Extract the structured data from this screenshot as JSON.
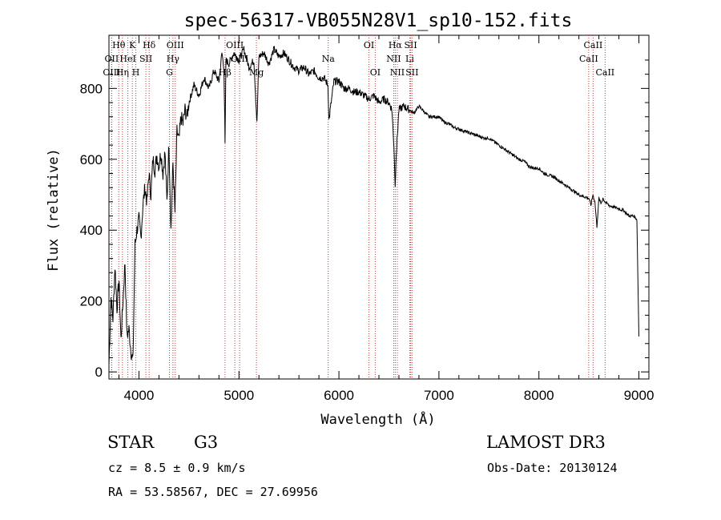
{
  "chart_data": {
    "type": "line",
    "title": "spec-56317-VB055N28V1_sp10-152.fits",
    "xlabel": "Wavelength (Å)",
    "ylabel": "Flux (relative)",
    "xlim": [
      3700,
      9100
    ],
    "ylim": [
      -20,
      950
    ],
    "xticks": [
      4000,
      5000,
      6000,
      7000,
      8000,
      9000
    ],
    "yticks": [
      0,
      200,
      400,
      600,
      800
    ],
    "spectrum": {
      "x": [
        3700,
        3720,
        3740,
        3760,
        3780,
        3800,
        3820,
        3840,
        3860,
        3880,
        3900,
        3920,
        3940,
        3960,
        3980,
        4000,
        4020,
        4040,
        4060,
        4080,
        4100,
        4120,
        4140,
        4160,
        4180,
        4200,
        4220,
        4240,
        4260,
        4280,
        4300,
        4320,
        4340,
        4360,
        4380,
        4400,
        4420,
        4440,
        4460,
        4480,
        4500,
        4550,
        4600,
        4650,
        4700,
        4750,
        4800,
        4830,
        4850,
        4861,
        4870,
        4900,
        4950,
        5000,
        5050,
        5100,
        5150,
        5180,
        5200,
        5250,
        5300,
        5350,
        5400,
        5450,
        5500,
        5550,
        5600,
        5650,
        5700,
        5750,
        5800,
        5850,
        5890,
        5900,
        5950,
        6000,
        6050,
        6100,
        6150,
        6200,
        6250,
        6300,
        6350,
        6400,
        6450,
        6500,
        6530,
        6550,
        6563,
        6570,
        6600,
        6650,
        6700,
        6750,
        6800,
        6850,
        6900,
        6950,
        7000,
        7050,
        7100,
        7150,
        7200,
        7250,
        7300,
        7350,
        7400,
        7450,
        7500,
        7550,
        7600,
        7650,
        7700,
        7750,
        7800,
        7850,
        7900,
        7950,
        8000,
        8050,
        8100,
        8150,
        8200,
        8250,
        8300,
        8350,
        8400,
        8450,
        8500,
        8520,
        8540,
        8560,
        8580,
        8600,
        8620,
        8640,
        8660,
        8680,
        8700,
        8750,
        8800,
        8850,
        8900,
        8950,
        8980,
        9000
      ],
      "y": [
        20,
        210,
        150,
        300,
        180,
        260,
        90,
        200,
        310,
        100,
        120,
        60,
        30,
        360,
        400,
        430,
        380,
        470,
        520,
        480,
        560,
        500,
        600,
        570,
        610,
        580,
        620,
        560,
        620,
        480,
        650,
        400,
        590,
        450,
        680,
        650,
        720,
        700,
        740,
        720,
        760,
        810,
        780,
        830,
        800,
        850,
        820,
        900,
        860,
        640,
        880,
        870,
        900,
        880,
        910,
        860,
        880,
        700,
        890,
        900,
        870,
        910,
        890,
        900,
        880,
        860,
        850,
        860,
        840,
        850,
        830,
        830,
        810,
        710,
        820,
        820,
        800,
        800,
        790,
        790,
        780,
        770,
        780,
        760,
        770,
        760,
        740,
        640,
        520,
        600,
        740,
        750,
        740,
        730,
        750,
        735,
        720,
        720,
        720,
        705,
        700,
        690,
        685,
        680,
        675,
        670,
        665,
        660,
        660,
        650,
        640,
        630,
        620,
        610,
        600,
        595,
        580,
        575,
        575,
        560,
        555,
        550,
        540,
        530,
        520,
        510,
        500,
        495,
        490,
        470,
        500,
        480,
        410,
        490,
        475,
        490,
        480,
        475,
        470,
        465,
        460,
        455,
        440,
        440,
        430,
        100
      ],
      "color": "#000000"
    },
    "lines": [
      {
        "label": "Hθ",
        "wave": 3798,
        "row": 1
      },
      {
        "label": "OII",
        "wave": 3727,
        "row": 2
      },
      {
        "label": "OIII",
        "wave": 3727,
        "row": 3
      },
      {
        "label": "K",
        "wave": 3934,
        "row": 1
      },
      {
        "label": "HeI",
        "wave": 3889,
        "row": 2
      },
      {
        "label": "Hη",
        "wave": 3835,
        "row": 3
      },
      {
        "label": "Hδ",
        "wave": 4102,
        "row": 1
      },
      {
        "label": "SII",
        "wave": 4069,
        "row": 2
      },
      {
        "label": "H",
        "wave": 3969,
        "row": 3
      },
      {
        "label": "OIII",
        "wave": 4363,
        "row": 1
      },
      {
        "label": "Hγ",
        "wave": 4340,
        "row": 2
      },
      {
        "label": "G",
        "wave": 4305,
        "row": 3
      },
      {
        "label": "OIII",
        "wave": 4959,
        "row": 1
      },
      {
        "label": "OIII",
        "wave": 5007,
        "row": 2
      },
      {
        "label": "Hβ",
        "wave": 4861,
        "row": 3
      },
      {
        "label": "Mg",
        "wave": 5175,
        "row": 3
      },
      {
        "label": "Na",
        "wave": 5893,
        "row": 2
      },
      {
        "label": "OI",
        "wave": 6300,
        "row": 1
      },
      {
        "label": "OI",
        "wave": 6363,
        "row": 3
      },
      {
        "label": "Hα",
        "wave": 6563,
        "row": 1
      },
      {
        "label": "NII",
        "wave": 6548,
        "row": 2
      },
      {
        "label": "NII",
        "wave": 6584,
        "row": 3
      },
      {
        "label": "SII",
        "wave": 6717,
        "row": 1
      },
      {
        "label": "Li",
        "wave": 6708,
        "row": 2
      },
      {
        "label": "SII",
        "wave": 6731,
        "row": 3
      },
      {
        "label": "CaII",
        "wave": 8542,
        "row": 1
      },
      {
        "label": "CaII",
        "wave": 8498,
        "row": 2
      },
      {
        "label": "CaII",
        "wave": 8662,
        "row": 3
      }
    ],
    "line_color": "#c23b3b"
  },
  "info": {
    "class": "STAR",
    "subclass": "G3",
    "survey": "LAMOST DR3",
    "cz": "cz = 8.5 ± 0.9 km/s",
    "obs_date": "Obs-Date: 20130124",
    "coords": "RA =  53.58567, DEC =  27.69956"
  }
}
